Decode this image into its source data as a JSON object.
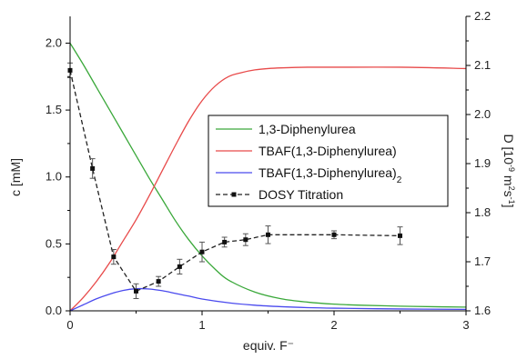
{
  "chart_data": {
    "type": "line",
    "xlabel": "equiv. F⁻",
    "ylabel_left": "c [mM]",
    "ylabel_right_base": "D [10",
    "ylabel_right_exp1": "-9",
    "ylabel_right_mid": " m",
    "ylabel_right_exp2": "2",
    "ylabel_right_mid2": "s",
    "ylabel_right_exp3": "-1",
    "ylabel_right_end": "]",
    "xlim": [
      0,
      3
    ],
    "ylim_left": [
      0,
      2.2
    ],
    "ylim_right": [
      1.6,
      2.2
    ],
    "x_ticks": [
      "0",
      "1",
      "2",
      "3"
    ],
    "y_left_ticks": [
      "0.0",
      "0.5",
      "1.0",
      "1.5",
      "2.0"
    ],
    "y_right_ticks": [
      "1.6",
      "1.7",
      "1.8",
      "1.9",
      "2.0",
      "2.1",
      "2.2"
    ],
    "series": [
      {
        "name": "1,3-Diphenylurea",
        "color": "#3aa83a",
        "axis": "left",
        "x": [
          0,
          0.1,
          0.2,
          0.3,
          0.4,
          0.5,
          0.6,
          0.7,
          0.8,
          0.9,
          1.0,
          1.1,
          1.2,
          1.4,
          1.6,
          1.8,
          2.0,
          2.2,
          2.5,
          2.8,
          3.0
        ],
        "values": [
          2.0,
          1.84,
          1.67,
          1.5,
          1.33,
          1.16,
          0.99,
          0.83,
          0.67,
          0.53,
          0.41,
          0.31,
          0.23,
          0.14,
          0.09,
          0.065,
          0.05,
          0.042,
          0.035,
          0.03,
          0.028
        ]
      },
      {
        "name": "TBAF(1,3-Diphenylurea)",
        "color": "#e84a4a",
        "axis": "left",
        "x": [
          0,
          0.1,
          0.2,
          0.3,
          0.4,
          0.5,
          0.6,
          0.7,
          0.8,
          0.9,
          1.0,
          1.1,
          1.2,
          1.3,
          1.4,
          1.5,
          1.6,
          1.8,
          2.0,
          2.5,
          3.0
        ],
        "values": [
          0.0,
          0.1,
          0.22,
          0.36,
          0.52,
          0.68,
          0.86,
          1.05,
          1.24,
          1.42,
          1.57,
          1.68,
          1.75,
          1.78,
          1.8,
          1.81,
          1.815,
          1.82,
          1.82,
          1.82,
          1.81
        ]
      },
      {
        "name": "TBAF(1,3-Diphenylurea)",
        "name_sub": "2",
        "color": "#4a4aee",
        "axis": "left",
        "x": [
          0,
          0.1,
          0.2,
          0.3,
          0.4,
          0.5,
          0.6,
          0.7,
          0.8,
          0.9,
          1.0,
          1.2,
          1.4,
          1.6,
          1.8,
          2.0,
          2.5,
          3.0
        ],
        "values": [
          0.0,
          0.045,
          0.09,
          0.125,
          0.152,
          0.165,
          0.163,
          0.15,
          0.13,
          0.11,
          0.088,
          0.06,
          0.042,
          0.031,
          0.024,
          0.02,
          0.014,
          0.011
        ]
      },
      {
        "name": "DOSY Titration",
        "color": "#222222",
        "axis": "right",
        "style": "dashed-markers",
        "x": [
          0,
          0.17,
          0.33,
          0.5,
          0.67,
          0.83,
          1.0,
          1.17,
          1.33,
          1.5,
          2.0,
          2.5
        ],
        "values": [
          2.09,
          1.89,
          1.71,
          1.64,
          1.66,
          1.69,
          1.72,
          1.74,
          1.745,
          1.755,
          1.755,
          1.753
        ],
        "errors": [
          0.015,
          0.02,
          0.015,
          0.015,
          0.01,
          0.015,
          0.02,
          0.01,
          0.012,
          0.018,
          0.008,
          0.018
        ]
      }
    ],
    "legend_position": "center-right"
  }
}
